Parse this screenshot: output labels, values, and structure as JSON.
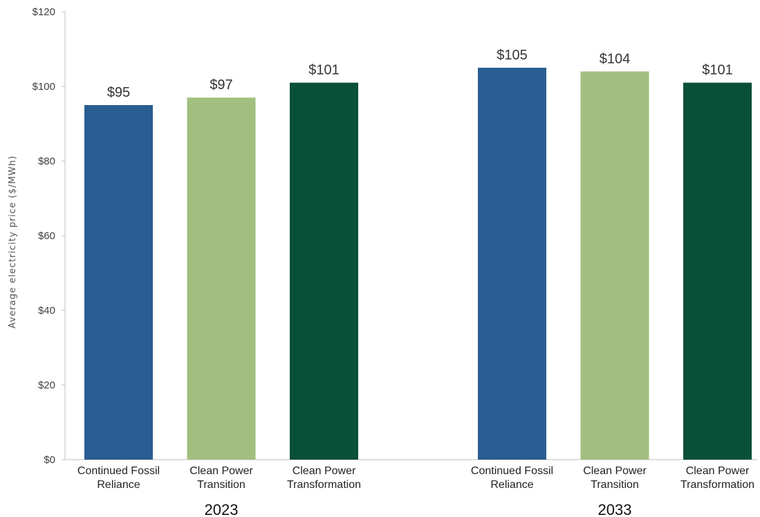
{
  "chart_data": {
    "type": "bar",
    "ylabel": "Average electricity price ($/MWh)",
    "ylim": [
      0,
      120
    ],
    "yticks": [
      0,
      20,
      40,
      60,
      80,
      100,
      120
    ],
    "ytick_labels": [
      "$0",
      "$20",
      "$40",
      "$60",
      "$80",
      "$100",
      "$120"
    ],
    "grid": false,
    "groups": [
      {
        "label": "2023",
        "bars": [
          {
            "category": [
              "Continued Fossil",
              "Reliance"
            ],
            "value": 95,
            "label": "$95",
            "color": "#2a5d91"
          },
          {
            "category": [
              "Clean Power",
              "Transition"
            ],
            "value": 97,
            "label": "$97",
            "color": "#a1bf7f"
          },
          {
            "category": [
              "Clean Power",
              "Transformation"
            ],
            "value": 101,
            "label": "$101",
            "color": "#0a4f38"
          }
        ]
      },
      {
        "label": "2033",
        "bars": [
          {
            "category": [
              "Continued Fossil",
              "Reliance"
            ],
            "value": 105,
            "label": "$105",
            "color": "#2a5d91"
          },
          {
            "category": [
              "Clean Power",
              "Transition"
            ],
            "value": 104,
            "label": "$104",
            "color": "#a1bf7f"
          },
          {
            "category": [
              "Clean Power",
              "Transformation"
            ],
            "value": 101,
            "label": "$101",
            "color": "#0a4f38"
          }
        ]
      }
    ]
  }
}
